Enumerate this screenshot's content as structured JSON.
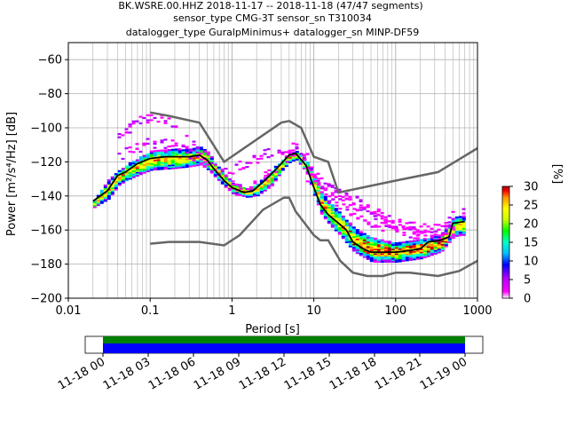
{
  "chart_data": {
    "type": "heatmap",
    "title_lines": [
      "BK.WSRE.00.HHZ   2018-11-17 -- 2018-11-18  (47/47 segments)",
      "sensor_type CMG-3T sensor_sn T310034",
      "datalogger_type GuralpMinimus+ datalogger_sn MINP-DF59"
    ],
    "xlabel": "Period [s]",
    "ylabel": "Power [m²/s⁴/Hz] [dB]",
    "x_scale": "log",
    "xlim": [
      0.01,
      1000
    ],
    "ylim": [
      -200,
      -50
    ],
    "x_ticks": [
      {
        "value": 0.01,
        "label": "0.01"
      },
      {
        "value": 0.1,
        "label": "0.1"
      },
      {
        "value": 1,
        "label": "1"
      },
      {
        "value": 10,
        "label": "10"
      },
      {
        "value": 100,
        "label": "100"
      },
      {
        "value": 1000,
        "label": "1000"
      }
    ],
    "y_ticks": [
      -60,
      -80,
      -100,
      -120,
      -140,
      -160,
      -180,
      -200
    ],
    "grid": true,
    "colorbar": {
      "label": "[%]",
      "ticks": [
        0,
        5,
        10,
        15,
        20,
        25,
        30
      ],
      "range": [
        0,
        30
      ]
    },
    "noise_models": {
      "nhnm": [
        [
          0.1,
          -91
        ],
        [
          0.17,
          -93
        ],
        [
          0.4,
          -97
        ],
        [
          0.8,
          -120
        ],
        [
          4,
          -97
        ],
        [
          5,
          -96
        ],
        [
          7,
          -100
        ],
        [
          10,
          -117
        ],
        [
          15,
          -120
        ],
        [
          20,
          -138
        ],
        [
          100,
          -131
        ],
        [
          330,
          -126
        ],
        [
          1000,
          -112
        ]
      ],
      "nlnm": [
        [
          0.1,
          -168
        ],
        [
          0.17,
          -167
        ],
        [
          0.4,
          -167
        ],
        [
          0.8,
          -169
        ],
        [
          1.24,
          -163
        ],
        [
          2.4,
          -148
        ],
        [
          4.3,
          -141
        ],
        [
          5,
          -141
        ],
        [
          6,
          -149
        ],
        [
          10,
          -163
        ],
        [
          12,
          -166
        ],
        [
          15,
          -166
        ],
        [
          21,
          -178
        ],
        [
          30,
          -185
        ],
        [
          45,
          -187
        ],
        [
          70,
          -187
        ],
        [
          100,
          -185
        ],
        [
          150,
          -185
        ],
        [
          330,
          -187
        ],
        [
          600,
          -184
        ],
        [
          1000,
          -178
        ]
      ]
    },
    "mean_curve": [
      [
        0.02,
        -143
      ],
      [
        0.03,
        -137
      ],
      [
        0.04,
        -128
      ],
      [
        0.05,
        -126
      ],
      [
        0.07,
        -121
      ],
      [
        0.1,
        -118
      ],
      [
        0.15,
        -117
      ],
      [
        0.2,
        -117
      ],
      [
        0.3,
        -117
      ],
      [
        0.4,
        -116
      ],
      [
        0.5,
        -119
      ],
      [
        0.6,
        -124
      ],
      [
        0.8,
        -131
      ],
      [
        1,
        -135
      ],
      [
        1.4,
        -138
      ],
      [
        1.8,
        -137
      ],
      [
        2.5,
        -131
      ],
      [
        3.5,
        -124
      ],
      [
        5,
        -116
      ],
      [
        6,
        -115
      ],
      [
        8,
        -122
      ],
      [
        10,
        -135
      ],
      [
        12,
        -145
      ],
      [
        15,
        -151
      ],
      [
        20,
        -156
      ],
      [
        25,
        -160
      ],
      [
        30,
        -167
      ],
      [
        40,
        -171
      ],
      [
        50,
        -173
      ],
      [
        70,
        -173
      ],
      [
        100,
        -173
      ],
      [
        150,
        -172
      ],
      [
        200,
        -171
      ],
      [
        250,
        -167
      ],
      [
        350,
        -166
      ],
      [
        450,
        -164
      ],
      [
        500,
        -156
      ],
      [
        700,
        -155
      ]
    ],
    "band_upper": [
      [
        0.02,
        -142
      ],
      [
        0.03,
        -130
      ],
      [
        0.04,
        -124
      ],
      [
        0.05,
        -121
      ],
      [
        0.07,
        -117
      ],
      [
        0.1,
        -113
      ],
      [
        0.2,
        -112
      ],
      [
        0.3,
        -112
      ],
      [
        0.4,
        -111
      ],
      [
        0.5,
        -114
      ],
      [
        0.6,
        -120
      ],
      [
        0.8,
        -127
      ],
      [
        1,
        -132
      ],
      [
        1.5,
        -135
      ],
      [
        2,
        -132
      ],
      [
        3,
        -124
      ],
      [
        4,
        -118
      ],
      [
        5,
        -114
      ],
      [
        6,
        -113
      ],
      [
        8,
        -119
      ],
      [
        10,
        -128
      ],
      [
        12,
        -137
      ],
      [
        15,
        -143
      ],
      [
        20,
        -149
      ],
      [
        30,
        -158
      ],
      [
        50,
        -164
      ],
      [
        100,
        -167
      ],
      [
        200,
        -165
      ],
      [
        350,
        -162
      ],
      [
        500,
        -152
      ],
      [
        700,
        -151
      ]
    ],
    "band_lower": [
      [
        0.02,
        -146
      ],
      [
        0.03,
        -141
      ],
      [
        0.04,
        -133
      ],
      [
        0.05,
        -130
      ],
      [
        0.07,
        -127
      ],
      [
        0.1,
        -124
      ],
      [
        0.2,
        -123
      ],
      [
        0.3,
        -122
      ],
      [
        0.4,
        -121
      ],
      [
        0.5,
        -124
      ],
      [
        0.6,
        -128
      ],
      [
        0.8,
        -134
      ],
      [
        1,
        -138
      ],
      [
        1.5,
        -140
      ],
      [
        2,
        -139
      ],
      [
        3,
        -133
      ],
      [
        4,
        -124
      ],
      [
        5,
        -119
      ],
      [
        6,
        -118
      ],
      [
        8,
        -126
      ],
      [
        10,
        -140
      ],
      [
        12,
        -150
      ],
      [
        15,
        -156
      ],
      [
        20,
        -162
      ],
      [
        30,
        -172
      ],
      [
        50,
        -178
      ],
      [
        100,
        -178
      ],
      [
        200,
        -176
      ],
      [
        350,
        -172
      ],
      [
        500,
        -163
      ],
      [
        700,
        -162
      ]
    ],
    "outlier_curves": [
      [
        [
          0.04,
          -103
        ],
        [
          0.06,
          -98
        ],
        [
          0.1,
          -92
        ],
        [
          0.15,
          -95
        ],
        [
          0.2,
          -98
        ],
        [
          0.3,
          -108
        ],
        [
          0.5,
          -118
        ]
      ],
      [
        [
          0.04,
          -116
        ],
        [
          0.07,
          -111
        ],
        [
          0.1,
          -108
        ],
        [
          0.2,
          -110
        ],
        [
          0.4,
          -118
        ],
        [
          0.8,
          -128
        ],
        [
          1.2,
          -135
        ]
      ],
      [
        [
          0.8,
          -125
        ],
        [
          1.5,
          -120
        ],
        [
          3,
          -113
        ],
        [
          5,
          -111
        ],
        [
          7,
          -112
        ],
        [
          10,
          -127
        ],
        [
          14,
          -134
        ],
        [
          20,
          -138
        ],
        [
          40,
          -145
        ],
        [
          70,
          -154
        ],
        [
          150,
          -158
        ],
        [
          350,
          -158
        ],
        [
          500,
          -150
        ],
        [
          700,
          -150
        ]
      ],
      [
        [
          1,
          -140
        ],
        [
          2,
          -132
        ],
        [
          4,
          -120
        ],
        [
          6,
          -115
        ],
        [
          9,
          -125
        ],
        [
          15,
          -140
        ],
        [
          25,
          -147
        ],
        [
          50,
          -155
        ],
        [
          100,
          -160
        ],
        [
          300,
          -163
        ],
        [
          500,
          -156
        ]
      ],
      [
        [
          8,
          -128
        ],
        [
          12,
          -132
        ],
        [
          20,
          -140
        ],
        [
          30,
          -145
        ],
        [
          60,
          -150
        ],
        [
          120,
          -160
        ],
        [
          300,
          -165
        ],
        [
          500,
          -160
        ]
      ]
    ],
    "time_axis": {
      "tick_labels": [
        "11-18 00",
        "11-18 03",
        "11-18 06",
        "11-18 09",
        "11-18 12",
        "11-18 15",
        "11-18 18",
        "11-18 21",
        "11-19 00"
      ],
      "coverage_colors": [
        "#008000",
        "#0000ff"
      ]
    },
    "colors": {
      "model_lines": "#666666",
      "mean_curve": "#000000",
      "grid": "#b0b0b0"
    },
    "colormap": [
      "#ffffff",
      "#ff00ff",
      "#b000ff",
      "#0000ff",
      "#00bfff",
      "#00ffc8",
      "#00ff00",
      "#c8ff00",
      "#ffff00",
      "#ff9600",
      "#ff0000",
      "#a00000"
    ]
  }
}
